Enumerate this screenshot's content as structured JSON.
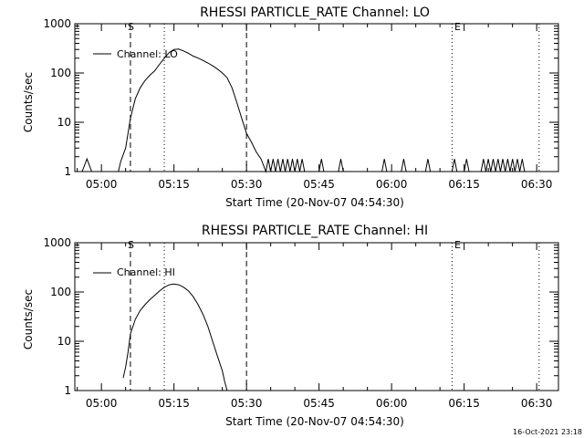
{
  "panels": [
    {
      "title": "RHESSI PARTICLE_RATE Channel: LO",
      "ylabel": "Counts/sec",
      "xlabel": "Start Time (20-Nov-07 04:54:30)",
      "legend": "Channel: LO"
    },
    {
      "title": "RHESSI PARTICLE_RATE Channel: HI",
      "ylabel": "Counts/sec",
      "xlabel": "Start Time (20-Nov-07 04:54:30)",
      "legend": "Channel: HI"
    }
  ],
  "markers": {
    "s_label": "S",
    "e_label": "E"
  },
  "footer": {
    "timestamp": "16-Oct-2021 23:18"
  },
  "chart_data": [
    {
      "type": "line",
      "title": "RHESSI PARTICLE_RATE Channel: LO",
      "xlabel": "Start Time (20-Nov-07 04:54:30)",
      "ylabel": "Counts/sec",
      "xlim": [
        "04:54:30",
        "06:34:30"
      ],
      "ylim": [
        1,
        1000
      ],
      "yscale": "log",
      "x_ticks": [
        "05:00",
        "05:15",
        "05:30",
        "05:45",
        "06:00",
        "06:15",
        "06:30"
      ],
      "y_ticks": [
        "1",
        "10",
        "100",
        "1000"
      ],
      "legend_position": "top-left",
      "vertical_lines": [
        {
          "x": "05:06:00",
          "style": "dashed",
          "label": "S"
        },
        {
          "x": "05:13:00",
          "style": "dotted",
          "label": ""
        },
        {
          "x": "05:30:00",
          "style": "dashed",
          "label": ""
        },
        {
          "x": "06:12:30",
          "style": "dotted",
          "label": "E"
        },
        {
          "x": "06:30:30",
          "style": "dotted",
          "label": ""
        }
      ],
      "series": [
        {
          "name": "Channel: LO",
          "points": [
            [
              "04:56:00",
              1
            ],
            [
              "04:57:00",
              1.8
            ],
            [
              "04:58:00",
              1
            ],
            [
              "05:03:30",
              1
            ],
            [
              "05:04:00",
              1.6
            ],
            [
              "05:05:00",
              3
            ],
            [
              "05:06:00",
              12
            ],
            [
              "05:07:00",
              30
            ],
            [
              "05:08:00",
              50
            ],
            [
              "05:09:00",
              70
            ],
            [
              "05:10:00",
              90
            ],
            [
              "05:11:00",
              110
            ],
            [
              "05:12:00",
              150
            ],
            [
              "05:13:00",
              200
            ],
            [
              "05:14:00",
              260
            ],
            [
              "05:15:00",
              300
            ],
            [
              "05:16:00",
              305
            ],
            [
              "05:17:00",
              280
            ],
            [
              "05:18:00",
              250
            ],
            [
              "05:19:00",
              220
            ],
            [
              "05:20:00",
              200
            ],
            [
              "05:21:00",
              180
            ],
            [
              "05:22:00",
              160
            ],
            [
              "05:23:00",
              140
            ],
            [
              "05:24:00",
              120
            ],
            [
              "05:25:00",
              100
            ],
            [
              "05:26:00",
              80
            ],
            [
              "05:27:00",
              50
            ],
            [
              "05:28:00",
              25
            ],
            [
              "05:29:00",
              12
            ],
            [
              "05:30:00",
              6
            ],
            [
              "05:31:00",
              4
            ],
            [
              "05:32:00",
              2.5
            ],
            [
              "05:33:00",
              1.8
            ],
            [
              "05:34:00",
              1
            ],
            [
              "05:34:30",
              1.8
            ],
            [
              "05:35:00",
              1
            ],
            [
              "05:35:30",
              1.8
            ],
            [
              "05:36:00",
              1
            ],
            [
              "05:36:30",
              1.8
            ],
            [
              "05:37:00",
              1
            ],
            [
              "05:37:30",
              1.8
            ],
            [
              "05:38:00",
              1
            ],
            [
              "05:38:30",
              1.8
            ],
            [
              "05:39:00",
              1
            ],
            [
              "05:39:30",
              1.8
            ],
            [
              "05:40:00",
              1
            ],
            [
              "05:40:30",
              1.8
            ],
            [
              "05:41:00",
              1
            ],
            [
              "05:41:30",
              1.8
            ],
            [
              "05:42:00",
              1
            ],
            [
              "05:45:00",
              1
            ],
            [
              "05:45:30",
              1.8
            ],
            [
              "05:46:00",
              1
            ],
            [
              "05:49:00",
              1
            ],
            [
              "05:49:30",
              1.8
            ],
            [
              "05:50:00",
              1
            ],
            [
              "05:58:00",
              1
            ],
            [
              "05:58:30",
              1.8
            ],
            [
              "05:59:00",
              1
            ],
            [
              "06:02:00",
              1
            ],
            [
              "06:02:30",
              1.8
            ],
            [
              "06:03:00",
              1
            ],
            [
              "06:07:00",
              1
            ],
            [
              "06:07:30",
              1.8
            ],
            [
              "06:08:00",
              1
            ],
            [
              "06:12:30",
              1
            ],
            [
              "06:13:00",
              1.8
            ],
            [
              "06:13:30",
              1
            ],
            [
              "06:15:00",
              1
            ],
            [
              "06:15:30",
              1.8
            ],
            [
              "06:16:00",
              1
            ],
            [
              "06:18:30",
              1
            ],
            [
              "06:19:00",
              1.8
            ],
            [
              "06:19:30",
              1
            ],
            [
              "06:20:00",
              1.8
            ],
            [
              "06:20:30",
              1
            ],
            [
              "06:21:00",
              1.8
            ],
            [
              "06:21:30",
              1
            ],
            [
              "06:22:00",
              1.8
            ],
            [
              "06:22:30",
              1
            ],
            [
              "06:23:00",
              1.8
            ],
            [
              "06:23:30",
              1
            ],
            [
              "06:24:00",
              1.8
            ],
            [
              "06:24:30",
              1
            ],
            [
              "06:25:00",
              1.8
            ],
            [
              "06:25:30",
              1
            ],
            [
              "06:26:00",
              1.8
            ],
            [
              "06:26:30",
              1
            ],
            [
              "06:27:00",
              1.8
            ],
            [
              "06:27:30",
              1
            ]
          ]
        }
      ]
    },
    {
      "type": "line",
      "title": "RHESSI PARTICLE_RATE Channel: HI",
      "xlabel": "Start Time (20-Nov-07 04:54:30)",
      "ylabel": "Counts/sec",
      "xlim": [
        "04:54:30",
        "06:34:30"
      ],
      "ylim": [
        1,
        1000
      ],
      "yscale": "log",
      "x_ticks": [
        "05:00",
        "05:15",
        "05:30",
        "05:45",
        "06:00",
        "06:15",
        "06:30"
      ],
      "y_ticks": [
        "1",
        "10",
        "100",
        "1000"
      ],
      "legend_position": "top-left",
      "vertical_lines": [
        {
          "x": "05:06:00",
          "style": "dashed",
          "label": "S"
        },
        {
          "x": "05:13:00",
          "style": "dotted",
          "label": ""
        },
        {
          "x": "05:30:00",
          "style": "dashed",
          "label": ""
        },
        {
          "x": "06:12:30",
          "style": "dotted",
          "label": "E"
        },
        {
          "x": "06:30:30",
          "style": "dotted",
          "label": ""
        }
      ],
      "series": [
        {
          "name": "Channel: HI",
          "points": [
            [
              "05:04:30",
              1.8
            ],
            [
              "05:05:00",
              3
            ],
            [
              "05:05:30",
              6
            ],
            [
              "05:06:00",
              14
            ],
            [
              "05:07:00",
              28
            ],
            [
              "05:08:00",
              42
            ],
            [
              "05:09:00",
              55
            ],
            [
              "05:10:00",
              70
            ],
            [
              "05:11:00",
              85
            ],
            [
              "05:12:00",
              105
            ],
            [
              "05:13:00",
              125
            ],
            [
              "05:14:00",
              140
            ],
            [
              "05:15:00",
              145
            ],
            [
              "05:16:00",
              140
            ],
            [
              "05:17:00",
              125
            ],
            [
              "05:18:00",
              105
            ],
            [
              "05:19:00",
              80
            ],
            [
              "05:20:00",
              55
            ],
            [
              "05:21:00",
              35
            ],
            [
              "05:22:00",
              20
            ],
            [
              "05:23:00",
              10
            ],
            [
              "05:24:00",
              5
            ],
            [
              "05:25:00",
              2.5
            ],
            [
              "05:25:30",
              1.5
            ],
            [
              "05:26:00",
              1
            ]
          ]
        }
      ]
    }
  ]
}
